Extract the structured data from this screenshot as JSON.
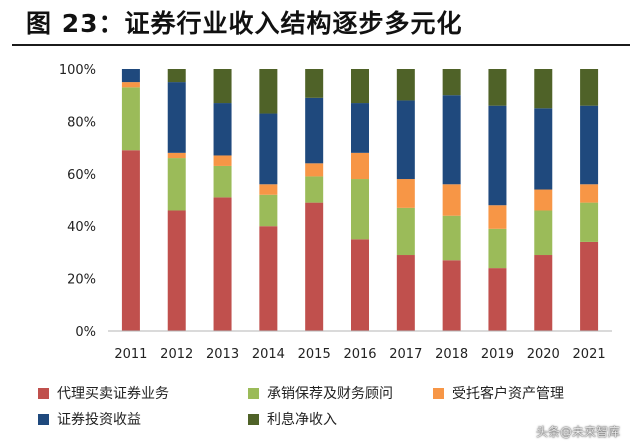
{
  "title": "图 23：证券行业收入结构逐步多元化",
  "watermark": "头条@未来智库",
  "chart_data": {
    "type": "bar",
    "stacked": true,
    "categories": [
      "2011",
      "2012",
      "2013",
      "2014",
      "2015",
      "2016",
      "2017",
      "2018",
      "2019",
      "2020",
      "2021"
    ],
    "yticks": [
      "0%",
      "20%",
      "40%",
      "60%",
      "80%",
      "100%"
    ],
    "ylim": [
      0,
      100
    ],
    "series": [
      {
        "name": "代理买卖证券业务",
        "color": "#c0504d",
        "values": [
          69,
          46,
          51,
          40,
          49,
          35,
          29,
          27,
          24,
          29,
          34
        ]
      },
      {
        "name": "承销保荐及财务顾问",
        "color": "#9bbb59",
        "values": [
          24,
          20,
          12,
          12,
          10,
          23,
          18,
          17,
          15,
          17,
          15
        ]
      },
      {
        "name": "受托客户资产管理",
        "color": "#f79646",
        "values": [
          2,
          2,
          4,
          4,
          5,
          10,
          11,
          12,
          9,
          8,
          7
        ]
      },
      {
        "name": "证券投资收益",
        "color": "#1f497d",
        "values": [
          5,
          27,
          20,
          27,
          25,
          19,
          30,
          34,
          38,
          31,
          30
        ]
      },
      {
        "name": "利息净收入",
        "color": "#4f6228",
        "values": [
          0,
          5,
          13,
          17,
          11,
          13,
          12,
          10,
          14,
          15,
          14
        ]
      }
    ]
  }
}
